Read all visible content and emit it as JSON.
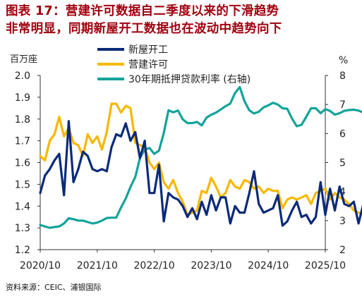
{
  "title": {
    "prefix": "图表 17：",
    "line1": "营建许可数据自二季度以来的下滑趋势",
    "line2": "非常明显，同期新屋开工数据也在波动中趋势向下"
  },
  "source": "资料来源：CEIC、浦银国际",
  "colors": {
    "housing_starts": "#0b2a7a",
    "building_permits": "#f5b800",
    "mortgage_rate": "#12a39a",
    "title": "#a0000f"
  },
  "chart_data": {
    "type": "line",
    "left_axis_label": "百万座",
    "right_axis_label": "%",
    "left_ylim": [
      1.2,
      2.0
    ],
    "left_ticks": [
      "1.2",
      "1.3",
      "1.4",
      "1.5",
      "1.6",
      "1.7",
      "1.8",
      "1.9",
      "2.0"
    ],
    "right_ylim": [
      2,
      8
    ],
    "right_ticks": [
      "2",
      "3",
      "4",
      "5",
      "6",
      "7",
      "8"
    ],
    "x_ticks": [
      "2020/10",
      "2021/10",
      "2022/10",
      "2023/10",
      "2024/10",
      "2025/10"
    ],
    "start": "2020-10",
    "grid": false,
    "legend_position": "top",
    "series": [
      {
        "name": "新屋开工",
        "axis": "left",
        "color": "#0b2a7a",
        "values": [
          1.46,
          1.54,
          1.57,
          1.61,
          1.64,
          1.45,
          1.79,
          1.51,
          1.57,
          1.65,
          1.63,
          1.57,
          1.56,
          1.57,
          1.56,
          1.67,
          1.73,
          1.72,
          1.78,
          1.7,
          1.74,
          1.62,
          1.7,
          1.46,
          1.46,
          1.59,
          1.33,
          1.46,
          1.44,
          1.43,
          1.4,
          1.35,
          1.39,
          1.34,
          1.42,
          1.36,
          1.45,
          1.38,
          1.44,
          1.44,
          1.32,
          1.4,
          1.37,
          1.37,
          1.46,
          1.56,
          1.41,
          1.37,
          1.38,
          1.39,
          1.45,
          1.31,
          1.33,
          1.38,
          1.42,
          1.35,
          1.36,
          1.32,
          1.35,
          1.51,
          1.36,
          1.48,
          1.38,
          1.49,
          1.41,
          1.4,
          1.42,
          1.32,
          1.41,
          1.42,
          1.39,
          1.43,
          1.3
        ],
        "extra_points": []
      },
      {
        "name": "营建许可",
        "axis": "left",
        "color": "#f5b800",
        "values": [
          1.63,
          1.61,
          1.7,
          1.73,
          1.81,
          1.72,
          1.76,
          1.69,
          1.68,
          1.63,
          1.73,
          1.69,
          1.72,
          1.66,
          1.74,
          1.87,
          1.87,
          1.83,
          1.86,
          1.85,
          1.69,
          1.68,
          1.67,
          1.6,
          1.57,
          1.6,
          1.51,
          1.48,
          1.52,
          1.46,
          1.42,
          1.36,
          1.37,
          1.38,
          1.47,
          1.46,
          1.53,
          1.49,
          1.44,
          1.46,
          1.52,
          1.49,
          1.48,
          1.52,
          1.51,
          1.48,
          1.49,
          1.46,
          1.48,
          1.47,
          1.47,
          1.39,
          1.43,
          1.44,
          1.43,
          1.44,
          1.45,
          1.41,
          1.46,
          1.47,
          1.48,
          1.43,
          1.46,
          1.44,
          1.43,
          1.41,
          1.38,
          1.37,
          1.36,
          1.35,
          1.33,
          1.31,
          1.3
        ]
      },
      {
        "name": "30年期抵押贷款利率 (右轴)",
        "axis": "right",
        "color": "#12a39a",
        "values": [
          2.85,
          2.8,
          2.75,
          2.78,
          2.8,
          2.9,
          3.08,
          3.05,
          3.0,
          3.0,
          2.95,
          2.9,
          2.93,
          3.0,
          3.09,
          3.1,
          3.1,
          3.45,
          3.76,
          4.16,
          4.5,
          5.16,
          5.45,
          5.5,
          5.3,
          5.41,
          6.02,
          6.8,
          6.73,
          6.79,
          6.49,
          6.36,
          6.36,
          6.4,
          6.28,
          6.55,
          6.65,
          6.72,
          6.83,
          6.94,
          7.03,
          7.4,
          7.6,
          7.11,
          6.8,
          6.69,
          6.75,
          6.9,
          6.97,
          7.06,
          7.0,
          6.87,
          6.85,
          6.51,
          6.25,
          6.3,
          6.58,
          6.87,
          6.87,
          6.7,
          6.84,
          6.78,
          6.65,
          6.7,
          6.78,
          6.81,
          6.82,
          6.79,
          6.72,
          6.64,
          6.59,
          6.32,
          6.26
        ]
      }
    ]
  }
}
